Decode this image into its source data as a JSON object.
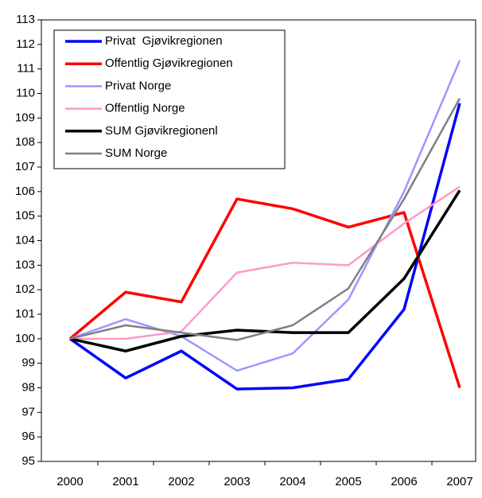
{
  "chart_data": {
    "type": "line",
    "categories": [
      "2000",
      "2001",
      "2002",
      "2003",
      "2004",
      "2005",
      "2006",
      "2007"
    ],
    "series": [
      {
        "name": "Privat  Gjøvikregionen",
        "color": "#0000ff",
        "values": [
          100,
          98.4,
          99.5,
          97.95,
          98.0,
          98.35,
          101.2,
          109.6
        ]
      },
      {
        "name": "Offentlig Gjøvikregionen",
        "color": "#ff0000",
        "values": [
          100,
          101.9,
          101.5,
          105.7,
          105.3,
          104.55,
          105.15,
          98.0
        ]
      },
      {
        "name": "Privat Norge",
        "color": "#9999ff",
        "values": [
          100,
          100.8,
          100.1,
          98.7,
          99.4,
          101.6,
          106.0,
          111.35
        ]
      },
      {
        "name": "Offentlig Norge",
        "color": "#ff99cc",
        "values": [
          100,
          100.0,
          100.3,
          102.7,
          103.1,
          103.0,
          104.7,
          106.2
        ]
      },
      {
        "name": "SUM Gjøvikregionenl",
        "color": "#000000",
        "values": [
          100,
          99.5,
          100.1,
          100.35,
          100.25,
          100.25,
          102.45,
          106.05
        ]
      },
      {
        "name": "SUM Norge",
        "color": "#808080",
        "values": [
          100,
          100.55,
          100.25,
          99.95,
          100.55,
          102.05,
          105.7,
          109.8
        ]
      }
    ],
    "ylim": [
      95,
      113
    ],
    "yticks": [
      95,
      96,
      97,
      98,
      99,
      100,
      101,
      102,
      103,
      104,
      105,
      106,
      107,
      108,
      109,
      110,
      111,
      112,
      113
    ],
    "grid": false,
    "legend": "upper left"
  }
}
